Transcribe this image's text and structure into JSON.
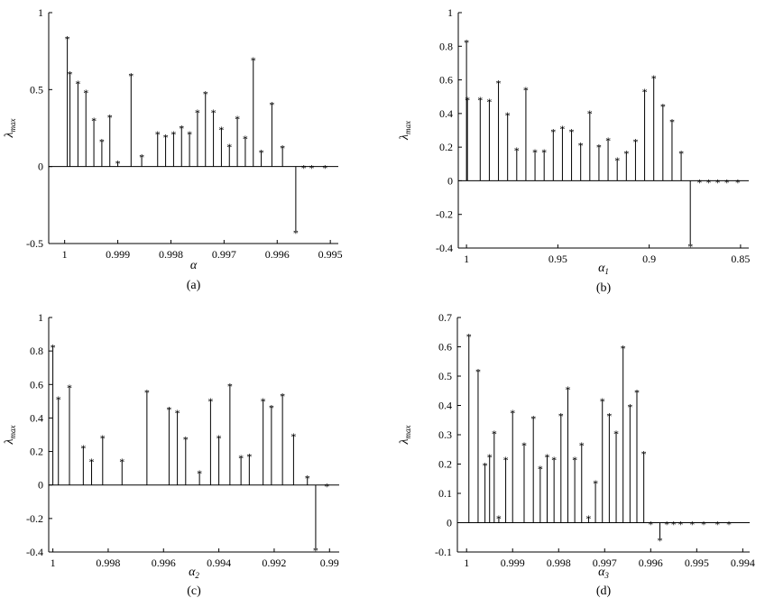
{
  "figure": {
    "background": "#ffffff",
    "ink": "#000000"
  },
  "chart_data": [
    {
      "type": "stem",
      "caption": "(a)",
      "ylabel": "λ",
      "ylabel_sub": "max",
      "xlabel": "α",
      "xlabel_sub": "",
      "x_reversed": true,
      "xlim": [
        1.0003,
        0.99485
      ],
      "ylim": [
        -0.5,
        1
      ],
      "xticks": [
        1,
        0.999,
        0.998,
        0.997,
        0.996,
        0.995
      ],
      "xtick_labels": [
        "1",
        "0.999",
        "0.998",
        "0.997",
        "0.996",
        "0.995"
      ],
      "yticks": [
        -0.5,
        0,
        0.5,
        1
      ],
      "ytick_labels": [
        "-0.5",
        "0",
        "0.5",
        "1"
      ],
      "marker": "*",
      "x": [
        0.99995,
        0.9999,
        0.99975,
        0.9996,
        0.99945,
        0.9993,
        0.99915,
        0.999,
        0.99875,
        0.99855,
        0.99825,
        0.9981,
        0.99795,
        0.9978,
        0.99765,
        0.9975,
        0.99735,
        0.9972,
        0.99705,
        0.9969,
        0.99675,
        0.9966,
        0.99645,
        0.9963,
        0.9961,
        0.9959,
        0.99565,
        0.9955,
        0.99535,
        0.9951
      ],
      "y": [
        0.84,
        0.61,
        0.55,
        0.49,
        0.31,
        0.17,
        0.33,
        0.03,
        0.6,
        0.07,
        0.22,
        0.2,
        0.22,
        0.26,
        0.22,
        0.36,
        0.48,
        0.36,
        0.25,
        0.14,
        0.32,
        0.19,
        0.7,
        0.1,
        0.41,
        0.13,
        -0.42,
        0.0,
        0.0,
        0.0
      ]
    },
    {
      "type": "stem",
      "caption": "(b)",
      "ylabel": "λ",
      "ylabel_sub": "max",
      "xlabel": "α",
      "xlabel_sub": "1",
      "x_reversed": true,
      "xlim": [
        1.0045,
        0.8455
      ],
      "ylim": [
        -0.4,
        1
      ],
      "xticks": [
        1,
        0.95,
        0.9,
        0.85
      ],
      "xtick_labels": [
        "1",
        "0.95",
        "0.9",
        "0.85"
      ],
      "yticks": [
        -0.4,
        -0.2,
        0,
        0.2,
        0.4,
        0.6,
        0.8,
        1
      ],
      "ytick_labels": [
        "-0.4",
        "-0.2",
        "0",
        "0.2",
        "0.4",
        "0.6",
        "0.8",
        "1"
      ],
      "marker": "*",
      "x": [
        1.0,
        0.9995,
        0.9925,
        0.9875,
        0.9825,
        0.9775,
        0.9725,
        0.9675,
        0.9625,
        0.9575,
        0.9525,
        0.9475,
        0.9425,
        0.9375,
        0.9325,
        0.9275,
        0.9225,
        0.9175,
        0.9125,
        0.9075,
        0.9025,
        0.8975,
        0.8925,
        0.8875,
        0.8825,
        0.8775,
        0.8725,
        0.8675,
        0.8625,
        0.8575,
        0.8515
      ],
      "y": [
        0.83,
        0.49,
        0.49,
        0.48,
        0.59,
        0.4,
        0.19,
        0.55,
        0.18,
        0.18,
        0.3,
        0.32,
        0.3,
        0.22,
        0.41,
        0.21,
        0.25,
        0.13,
        0.17,
        0.24,
        0.54,
        0.62,
        0.45,
        0.36,
        0.17,
        -0.38,
        0.0,
        0.0,
        0.0,
        0.0,
        0.0
      ]
    },
    {
      "type": "stem",
      "caption": "(c)",
      "ylabel": "λ",
      "ylabel_sub": "max",
      "xlabel": "α",
      "xlabel_sub": "2",
      "x_reversed": true,
      "xlim": [
        1.00015,
        0.98965
      ],
      "ylim": [
        -0.4,
        1
      ],
      "xticks": [
        1,
        0.998,
        0.996,
        0.994,
        0.992,
        0.99
      ],
      "xtick_labels": [
        "1",
        "0.998",
        "0.996",
        "0.994",
        "0.992",
        "0.99"
      ],
      "yticks": [
        -0.4,
        -0.2,
        0,
        0.2,
        0.4,
        0.6,
        0.8,
        1
      ],
      "ytick_labels": [
        "-0.4",
        "-0.2",
        "0",
        "0.2",
        "0.4",
        "0.6",
        "0.8",
        "1"
      ],
      "marker": "*",
      "x": [
        1.0,
        0.9998,
        0.9994,
        0.9989,
        0.9986,
        0.9982,
        0.9975,
        0.9966,
        0.9958,
        0.9955,
        0.9952,
        0.9947,
        0.9943,
        0.994,
        0.9936,
        0.9932,
        0.9929,
        0.9924,
        0.9921,
        0.9917,
        0.9913,
        0.9908,
        0.9905,
        0.9901
      ],
      "y": [
        0.83,
        0.52,
        0.59,
        0.23,
        0.15,
        0.29,
        0.15,
        0.56,
        0.46,
        0.44,
        0.28,
        0.08,
        0.51,
        0.29,
        0.6,
        0.17,
        0.18,
        0.51,
        0.47,
        0.54,
        0.3,
        0.05,
        -0.38,
        0.0
      ]
    },
    {
      "type": "stem",
      "caption": "(d)",
      "ylabel": "λ",
      "ylabel_sub": "max",
      "xlabel": "α",
      "xlabel_sub": "3",
      "x_reversed": true,
      "xlim": [
        1.0002,
        0.99385
      ],
      "ylim": [
        -0.1,
        0.7
      ],
      "xticks": [
        1,
        0.999,
        0.998,
        0.997,
        0.996,
        0.995,
        0.994
      ],
      "xtick_labels": [
        "1",
        "0.999",
        "0.998",
        "0.997",
        "0.996",
        "0.995",
        "0.994"
      ],
      "yticks": [
        -0.1,
        0,
        0.1,
        0.2,
        0.3,
        0.4,
        0.5,
        0.6,
        0.7
      ],
      "ytick_labels": [
        "-0.1",
        "0",
        "0.1",
        "0.2",
        "0.3",
        "0.4",
        "0.5",
        "0.6",
        "0.7"
      ],
      "marker": "*",
      "x": [
        0.99995,
        0.99975,
        0.9996,
        0.9995,
        0.9994,
        0.9993,
        0.99915,
        0.999,
        0.99875,
        0.99855,
        0.9984,
        0.99825,
        0.9981,
        0.99795,
        0.9978,
        0.99765,
        0.9975,
        0.99735,
        0.9972,
        0.99705,
        0.9969,
        0.99675,
        0.9966,
        0.99645,
        0.9963,
        0.99615,
        0.996,
        0.9958,
        0.99565,
        0.9955,
        0.99535,
        0.9951,
        0.99485,
        0.99455,
        0.9943
      ],
      "y": [
        0.64,
        0.52,
        0.2,
        0.23,
        0.31,
        0.02,
        0.22,
        0.38,
        0.27,
        0.36,
        0.19,
        0.23,
        0.22,
        0.37,
        0.46,
        0.22,
        0.27,
        0.02,
        0.14,
        0.42,
        0.37,
        0.31,
        0.6,
        0.4,
        0.45,
        0.24,
        0.0,
        -0.055,
        0.0,
        0.0,
        0.0,
        0.0,
        0.0,
        0.0,
        0.0
      ]
    }
  ]
}
